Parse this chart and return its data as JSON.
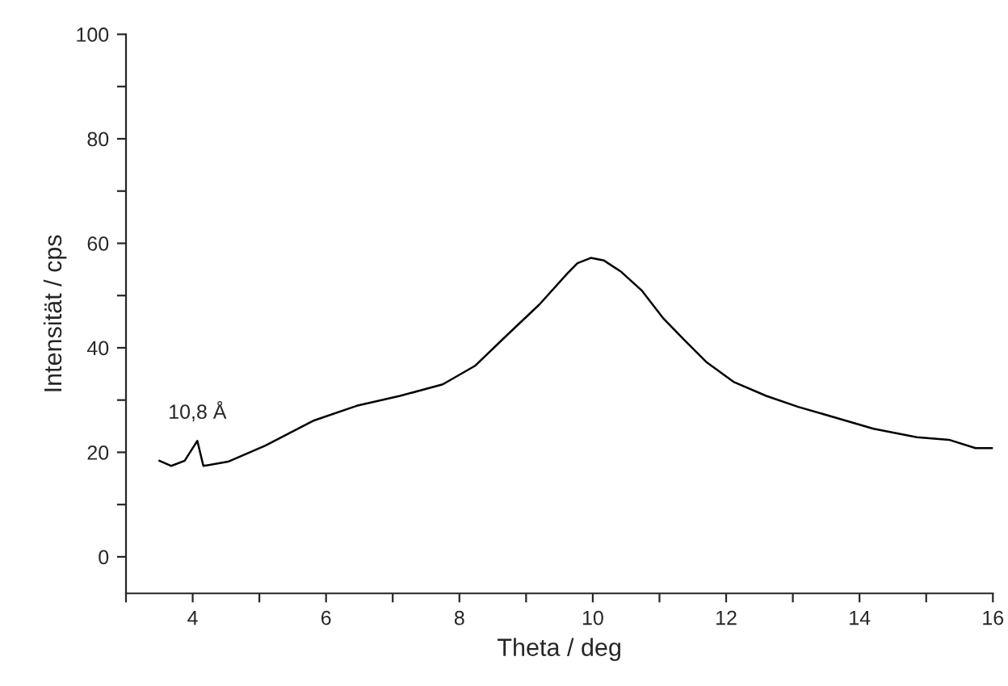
{
  "chart_data": {
    "type": "line",
    "xlabel": "Theta / deg",
    "ylabel": "Intensität / cps",
    "x": [
      3.5,
      3.68,
      3.88,
      4.07,
      4.16,
      4.53,
      5.09,
      5.82,
      6.46,
      7.11,
      7.75,
      8.24,
      8.72,
      9.2,
      9.61,
      9.77,
      9.97,
      10.17,
      10.42,
      10.74,
      11.06,
      11.38,
      11.71,
      12.11,
      12.6,
      13.08,
      13.65,
      14.21,
      14.86,
      15.34,
      15.74,
      16.0
    ],
    "series": [
      {
        "color": "#000000",
        "values": [
          18.4,
          17.4,
          18.4,
          22.2,
          17.4,
          18.2,
          21.3,
          26.1,
          28.9,
          30.8,
          33.0,
          36.6,
          42.5,
          48.3,
          54.1,
          56.2,
          57.2,
          56.7,
          54.6,
          50.9,
          45.6,
          41.4,
          37.2,
          33.5,
          30.8,
          28.7,
          26.6,
          24.5,
          22.9,
          22.4,
          20.8,
          20.8
        ]
      }
    ],
    "annotations": [
      {
        "text": "10,8 Å",
        "x": 4.07,
        "y": 22.2
      }
    ],
    "xlim": [
      3,
      16
    ],
    "ylim": [
      -7,
      100
    ],
    "xticks": [
      {
        "value": 3,
        "label": null
      },
      4,
      {
        "value": 5,
        "label": null
      },
      6,
      {
        "value": 7,
        "label": null
      },
      8,
      {
        "value": 9,
        "label": null
      },
      10,
      {
        "value": 11,
        "label": null
      },
      12,
      {
        "value": 13,
        "label": null
      },
      14,
      {
        "value": 15,
        "label": null
      },
      16
    ],
    "yticks": [
      0,
      {
        "value": 10,
        "label": null
      },
      20,
      {
        "value": 30,
        "label": null
      },
      40,
      {
        "value": 50,
        "label": null
      },
      60,
      {
        "value": 70,
        "label": null
      },
      80,
      {
        "value": 90,
        "label": null
      },
      100
    ],
    "grid": false,
    "marker": "none",
    "line_style": "solid"
  }
}
